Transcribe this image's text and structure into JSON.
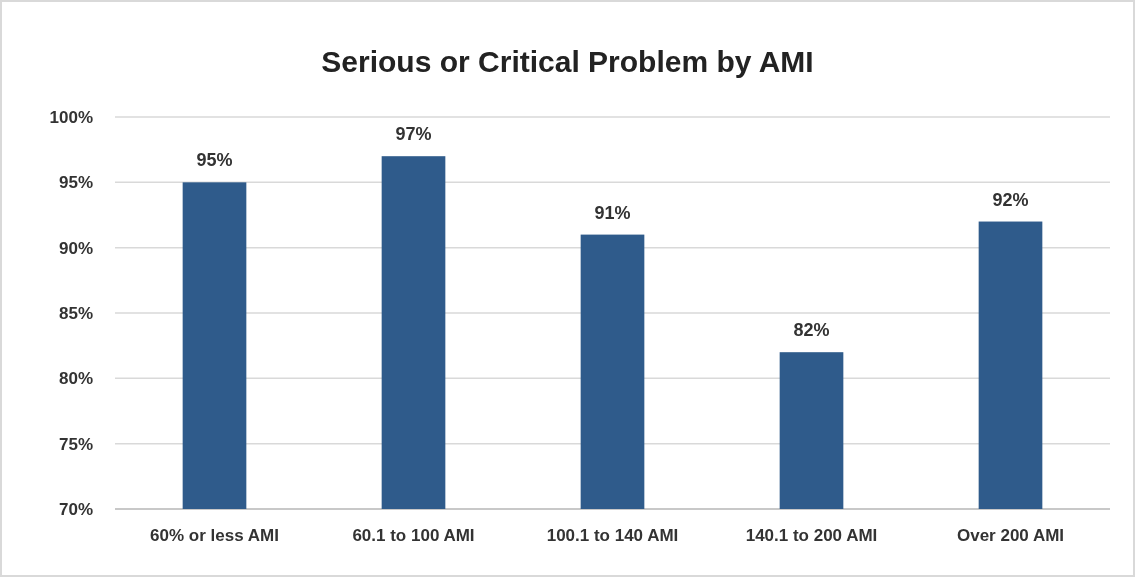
{
  "chart_data": {
    "type": "bar",
    "title": "Serious or Critical Problem by AMI",
    "categories": [
      "60% or less AMI",
      "60.1 to 100 AMI",
      "100.1 to 140 AMI",
      "140.1 to 200 AMI",
      "Over 200 AMI"
    ],
    "values": [
      95,
      97,
      91,
      82,
      92
    ],
    "value_labels": [
      "95%",
      "97%",
      "91%",
      "82%",
      "92%"
    ],
    "color": "#2f5b8b",
    "ylim": [
      70,
      100
    ],
    "yticks": [
      {
        "value": 70,
        "label": "70%"
      },
      {
        "value": 75,
        "label": "75%"
      },
      {
        "value": 80,
        "label": "80%"
      },
      {
        "value": 85,
        "label": "85%"
      },
      {
        "value": 90,
        "label": "90%"
      },
      {
        "value": 95,
        "label": "95%"
      },
      {
        "value": 100,
        "label": "100%"
      }
    ],
    "grid": "y"
  }
}
